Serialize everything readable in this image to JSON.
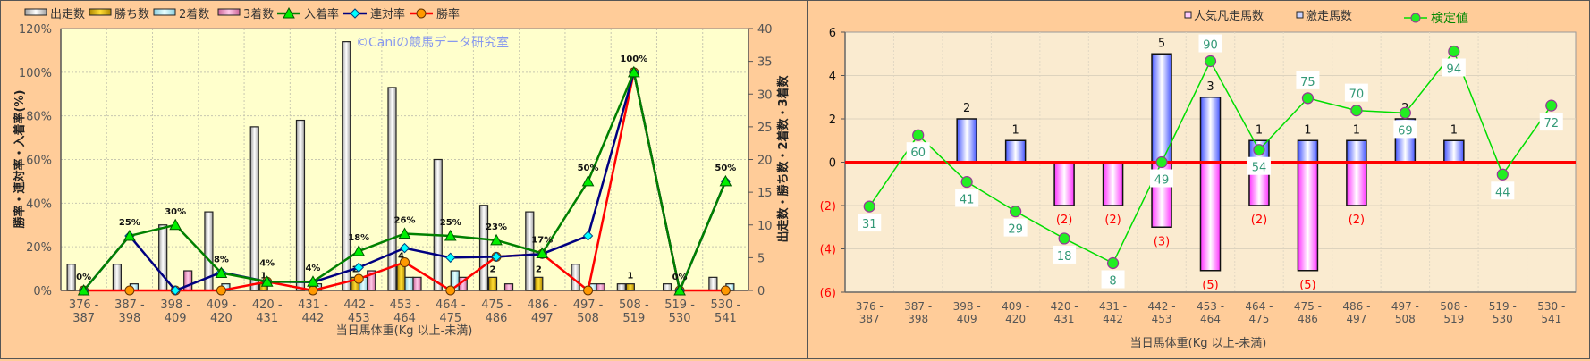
{
  "chart_data": [
    {
      "type": "bar+line",
      "title": "",
      "watermark": "©Caniの競馬データ研究室",
      "xlabel": "当日馬体重(Kg 以上-未満)",
      "ylabel_left": "勝率・連対率・入着率(%)",
      "ylabel_right": "出走数・勝ち数・2着数・3着数",
      "ylim_left": [
        0,
        120
      ],
      "ylim_right": [
        0,
        40
      ],
      "yticks_left": [
        "0%",
        "20%",
        "40%",
        "60%",
        "80%",
        "100%",
        "120%"
      ],
      "yticks_right": [
        "0",
        "5",
        "10",
        "15",
        "20",
        "25",
        "30",
        "35",
        "40"
      ],
      "categories": [
        [
          "376 -",
          "387"
        ],
        [
          "387 -",
          "398"
        ],
        [
          "398 -",
          "409"
        ],
        [
          "409 -",
          "420"
        ],
        [
          "420 -",
          "431"
        ],
        [
          "431 -",
          "442"
        ],
        [
          "442 -",
          "453"
        ],
        [
          "453 -",
          "464"
        ],
        [
          "464 -",
          "475"
        ],
        [
          "475 -",
          "486"
        ],
        [
          "486 -",
          "497"
        ],
        [
          "497 -",
          "508"
        ],
        [
          "508 -",
          "519"
        ],
        [
          "519 -",
          "530"
        ],
        [
          "530 -",
          "541"
        ]
      ],
      "bar_series": [
        {
          "name": "出走数",
          "color": "#E8E8E8",
          "values": [
            4,
            4,
            10,
            12,
            25,
            26,
            38,
            31,
            20,
            13,
            12,
            4,
            1,
            1,
            2
          ]
        },
        {
          "name": "勝ち数",
          "color": "#E6B800",
          "values": [
            0,
            0,
            0,
            0,
            1,
            0,
            2,
            4,
            0,
            2,
            2,
            0,
            1,
            0,
            0
          ]
        },
        {
          "name": "2着数",
          "color": "#B8ECF0",
          "values": [
            0,
            1,
            0,
            1,
            0,
            1,
            2,
            2,
            3,
            0,
            0,
            1,
            0,
            0,
            1
          ]
        },
        {
          "name": "3着数",
          "color": "#E890C8",
          "values": [
            0,
            0,
            3,
            0,
            0,
            0,
            3,
            2,
            2,
            1,
            0,
            1,
            0,
            0,
            0
          ]
        }
      ],
      "win_count_labels": [
        "",
        "",
        "",
        "",
        "1",
        "",
        "2",
        "4",
        "",
        "2",
        "2",
        "",
        "1",
        "",
        ""
      ],
      "line_series": [
        {
          "name": "入着率",
          "color": "#008000",
          "marker": "triangle",
          "values": [
            0,
            25,
            30,
            8,
            4,
            4,
            18,
            26,
            25,
            23,
            17,
            50,
            100,
            0,
            50
          ],
          "labels": [
            "0%",
            "25%",
            "30%",
            "8%",
            "4%",
            "4%",
            "18%",
            "26%",
            "25%",
            "23%",
            "17%",
            "50%",
            "100%",
            "0%",
            "50%"
          ]
        },
        {
          "name": "連対率",
          "color": "#000080",
          "marker": "diamond",
          "values": [
            0,
            25,
            0,
            8.3,
            4,
            3.8,
            10.5,
            19.4,
            15,
            15.4,
            16.7,
            25,
            100,
            0,
            50
          ]
        },
        {
          "name": "勝率",
          "color": "#FF0000",
          "marker": "circle",
          "values": [
            0,
            0,
            0,
            0,
            4,
            0,
            5.3,
            12.9,
            0,
            15.4,
            16.7,
            0,
            100,
            0,
            0
          ]
        }
      ],
      "grid": true,
      "legend": "top"
    },
    {
      "type": "bar+line",
      "title": "",
      "xlabel": "当日馬体重(Kg 以上-未満)",
      "ylim": [
        -6,
        6
      ],
      "yticks": [
        "6",
        "4",
        "2",
        "0",
        "(2)",
        "(4)",
        "(6)"
      ],
      "categories": [
        [
          "376 -",
          "387"
        ],
        [
          "387 -",
          "398"
        ],
        [
          "398 -",
          "409"
        ],
        [
          "409 -",
          "420"
        ],
        [
          "420 -",
          "431"
        ],
        [
          "431 -",
          "442"
        ],
        [
          "442 -",
          "453"
        ],
        [
          "453 -",
          "464"
        ],
        [
          "464 -",
          "475"
        ],
        [
          "475 -",
          "486"
        ],
        [
          "486 -",
          "497"
        ],
        [
          "497 -",
          "508"
        ],
        [
          "508 -",
          "519"
        ],
        [
          "519 -",
          "530"
        ],
        [
          "530 -",
          "541"
        ]
      ],
      "bar_series": [
        {
          "name": "人気凡走馬数",
          "color": "#FF66FF",
          "values": [
            0,
            0,
            0,
            0,
            -2,
            -2,
            -3,
            -5,
            -2,
            -5,
            -2,
            0,
            0,
            0,
            0
          ],
          "labels": [
            "",
            "",
            "",
            "",
            "(2)",
            "(2)",
            "(3)",
            "(5)",
            "(2)",
            "(5)",
            "(2)",
            "",
            "",
            "",
            ""
          ]
        },
        {
          "name": "激走馬数",
          "color": "#6677FF",
          "values": [
            0,
            0,
            2,
            1,
            0,
            0,
            5,
            3,
            1,
            1,
            1,
            2,
            1,
            0,
            0
          ],
          "labels": [
            "",
            "",
            "2",
            "1",
            "",
            "",
            "5",
            "3",
            "1",
            "1",
            "1",
            "2",
            "1",
            "",
            ""
          ]
        }
      ],
      "line_series": [
        {
          "name": "検定値",
          "color": "#00DD00",
          "values": [
            31,
            60,
            41,
            29,
            18,
            8,
            49,
            90,
            54,
            75,
            70,
            69,
            94,
            44,
            72
          ],
          "labels": [
            "31",
            "60",
            "41",
            "29",
            "18",
            "8",
            "49",
            "90",
            "54",
            "75",
            "70",
            "69",
            "94",
            "44",
            "72"
          ]
        }
      ],
      "grid": true,
      "legend": "top"
    }
  ]
}
